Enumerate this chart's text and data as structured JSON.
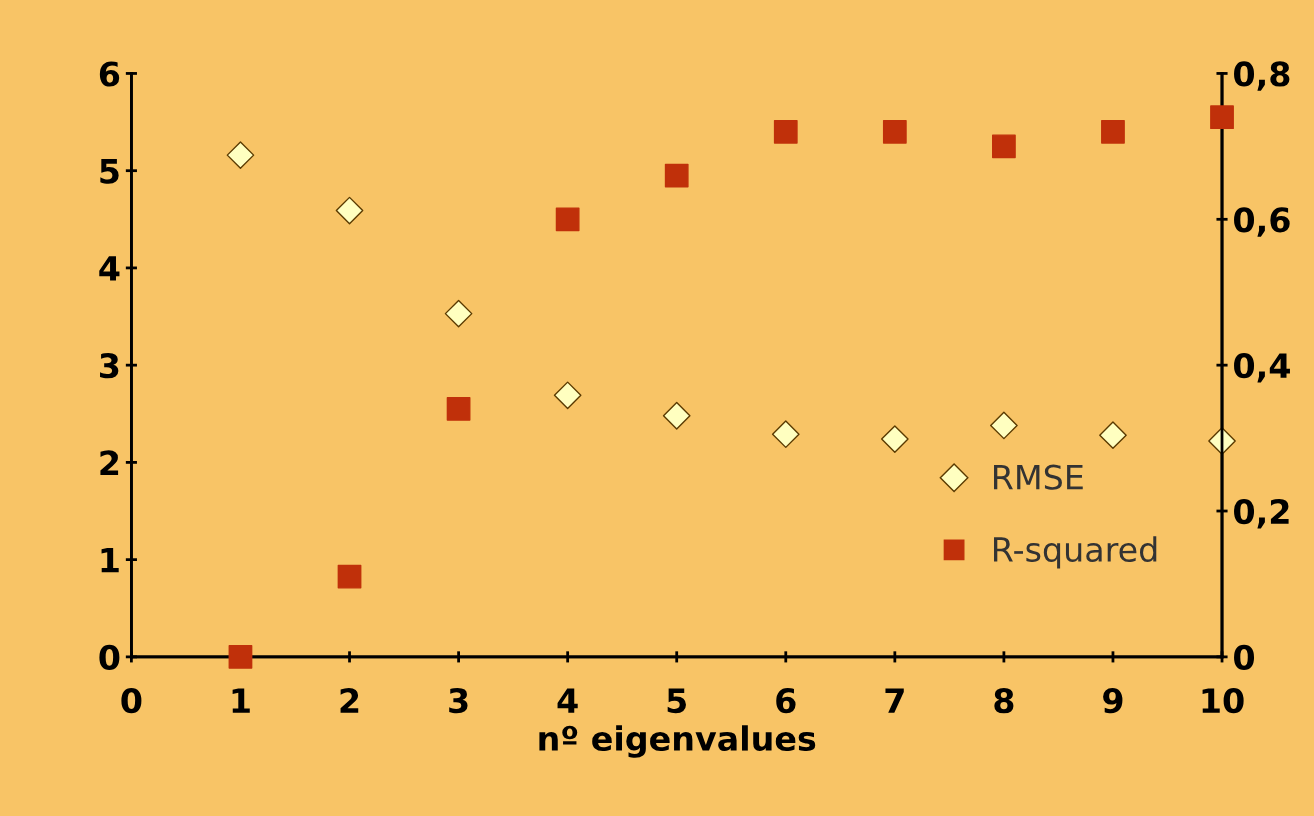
{
  "chart_data": {
    "type": "scatter",
    "xlabel": "nº eigenvalues",
    "x": [
      1,
      2,
      3,
      4,
      5,
      6,
      7,
      8,
      9,
      10
    ],
    "series": [
      {
        "name": "RMSE",
        "color": "#ffffc0",
        "marker": "diamond",
        "values": [
          5.16,
          4.59,
          3.53,
          2.69,
          2.48,
          2.29,
          2.24,
          2.38,
          2.28,
          2.22
        ]
      },
      {
        "name": "R-squared",
        "color": "#c0300a",
        "marker": "square",
        "axis": "y2",
        "values": [
          0.0,
          0.11,
          0.34,
          0.6,
          0.66,
          0.72,
          0.72,
          0.7,
          0.72,
          0.74
        ]
      }
    ],
    "xlim": [
      0,
      10
    ],
    "xticks": [
      0,
      1,
      2,
      3,
      4,
      5,
      6,
      7,
      8,
      9,
      10
    ],
    "ylim": [
      0,
      6
    ],
    "yticks": [
      0,
      1,
      2,
      3,
      4,
      5,
      6
    ],
    "y2lim": [
      0,
      0.8
    ],
    "y2ticks": [
      {
        "value": 0,
        "label": "0"
      },
      {
        "value": 0.2,
        "label": "0,2"
      },
      {
        "value": 0.4,
        "label": "0,4"
      },
      {
        "value": 0.6,
        "label": "0,6"
      },
      {
        "value": 0.8,
        "label": "0,8"
      }
    ],
    "grid": false,
    "legend": "bottom right"
  }
}
